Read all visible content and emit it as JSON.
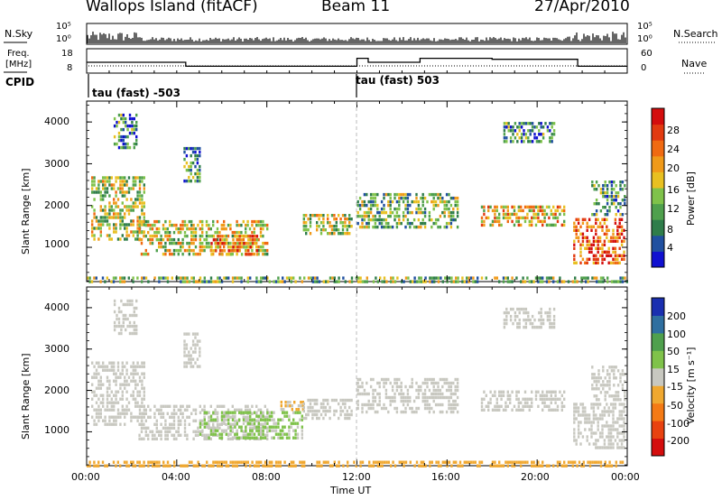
{
  "header": {
    "title": "Wallops Island (fitACF)",
    "beam": "Beam 11",
    "date": "27/Apr/2010"
  },
  "left_labels": {
    "nsky": "N.Sky",
    "freq": "Freq.",
    "freq_unit": "[MHz]",
    "cpid": "CPID"
  },
  "right_labels": {
    "nsearch": "N.Search",
    "nave": "Nave"
  },
  "nsky_ticks": [
    "10^5",
    "10^0"
  ],
  "nsearch_ticks": [
    "10^5",
    "10^0"
  ],
  "freq_ticks": [
    "18",
    "8"
  ],
  "nave_ticks": [
    "60",
    "0"
  ],
  "cpid_segments": [
    {
      "label": "tau (fast) -503",
      "start_hour": 0.0
    },
    {
      "label": "tau (fast) 503",
      "start_hour": 11.9
    }
  ],
  "chart_data": [
    {
      "type": "heatmap",
      "panel": "power",
      "ylabel": "Slant Range [km]",
      "ylim": [
        180,
        4500
      ],
      "yticks": [
        "1000",
        "2000",
        "3000",
        "4000"
      ],
      "xlim_hours": [
        0,
        24
      ],
      "colorbar": {
        "label": "Power [dB]",
        "ticks": [
          "28",
          "24",
          "20",
          "16",
          "12",
          "8",
          "4"
        ],
        "range": [
          0,
          30
        ],
        "colors": [
          "#1010d0",
          "#2050a0",
          "#2f7d4a",
          "#4fa04d",
          "#7fc24a",
          "#e8c021",
          "#f09a1a",
          "#f06a12",
          "#e23a10",
          "#d40d0d"
        ]
      },
      "regions": [
        {
          "t0": 0.2,
          "t1": 2.6,
          "r0": 1200,
          "r1": 2700,
          "level": 14
        },
        {
          "t0": 2.3,
          "t1": 8.0,
          "r0": 850,
          "r1": 1650,
          "level": 16
        },
        {
          "t0": 5.5,
          "t1": 7.6,
          "r0": 850,
          "r1": 1300,
          "level": 22
        },
        {
          "t0": 1.2,
          "t1": 2.2,
          "r0": 3400,
          "r1": 4200,
          "level": 8
        },
        {
          "t0": 4.3,
          "t1": 5.0,
          "r0": 2600,
          "r1": 3400,
          "level": 8
        },
        {
          "t0": 9.6,
          "t1": 11.8,
          "r0": 1300,
          "r1": 1800,
          "level": 14
        },
        {
          "t0": 12.0,
          "t1": 16.5,
          "r0": 1500,
          "r1": 2300,
          "level": 12
        },
        {
          "t0": 17.5,
          "t1": 21.2,
          "r0": 1500,
          "r1": 2000,
          "level": 18
        },
        {
          "t0": 21.6,
          "t1": 23.9,
          "r0": 600,
          "r1": 1700,
          "level": 24
        },
        {
          "t0": 22.4,
          "t1": 23.9,
          "r0": 1800,
          "r1": 2600,
          "level": 10
        },
        {
          "t0": 18.5,
          "t1": 20.8,
          "r0": 3500,
          "r1": 4000,
          "level": 8
        },
        {
          "t0": 0.0,
          "t1": 24.0,
          "r0": 180,
          "r1": 300,
          "level": 12
        }
      ]
    },
    {
      "type": "heatmap",
      "panel": "velocity",
      "ylabel": "Slant Range [km]",
      "ylim": [
        180,
        4500
      ],
      "yticks": [
        "1000",
        "2000",
        "3000",
        "4000"
      ],
      "xlim_hours": [
        0,
        24
      ],
      "xticks": [
        "00:00",
        "04:00",
        "08:00",
        "12:00",
        "16:00",
        "20:00",
        "00:00"
      ],
      "xlabel": "Time UT",
      "colorbar": {
        "label": "Velocity [m s^-1]",
        "ticks": [
          "200",
          "100",
          "50",
          "15",
          "-15",
          "-50",
          "-100",
          "-200"
        ],
        "range": [
          -250,
          250
        ],
        "colors": [
          "#d40d0d",
          "#e84210",
          "#f47a15",
          "#f0a830",
          "#c8c8c0",
          "#7fc24a",
          "#4fa04d",
          "#2f6fa0",
          "#1a2fb0"
        ]
      },
      "regions": [
        {
          "t0": 0.2,
          "t1": 2.6,
          "r0": 1200,
          "r1": 2700,
          "level": 0
        },
        {
          "t0": 2.3,
          "t1": 8.0,
          "r0": 850,
          "r1": 1650,
          "level": 0
        },
        {
          "t0": 5.0,
          "t1": 9.6,
          "r0": 850,
          "r1": 1500,
          "level": 35
        },
        {
          "t0": 8.6,
          "t1": 9.6,
          "r0": 1500,
          "r1": 1750,
          "level": -40
        },
        {
          "t0": 1.2,
          "t1": 2.2,
          "r0": 3400,
          "r1": 4200,
          "level": 0
        },
        {
          "t0": 4.3,
          "t1": 5.0,
          "r0": 2600,
          "r1": 3400,
          "level": 0
        },
        {
          "t0": 9.6,
          "t1": 11.8,
          "r0": 1300,
          "r1": 1800,
          "level": 0
        },
        {
          "t0": 12.0,
          "t1": 16.5,
          "r0": 1500,
          "r1": 2300,
          "level": 0
        },
        {
          "t0": 17.5,
          "t1": 21.2,
          "r0": 1500,
          "r1": 2000,
          "level": 0
        },
        {
          "t0": 21.6,
          "t1": 23.9,
          "r0": 600,
          "r1": 1700,
          "level": 0
        },
        {
          "t0": 22.4,
          "t1": 23.9,
          "r0": 1800,
          "r1": 2600,
          "level": 0
        },
        {
          "t0": 18.5,
          "t1": 20.8,
          "r0": 3500,
          "r1": 4000,
          "level": 0
        },
        {
          "t0": 0.0,
          "t1": 24.0,
          "r0": 180,
          "r1": 300,
          "level": -60
        }
      ]
    }
  ]
}
